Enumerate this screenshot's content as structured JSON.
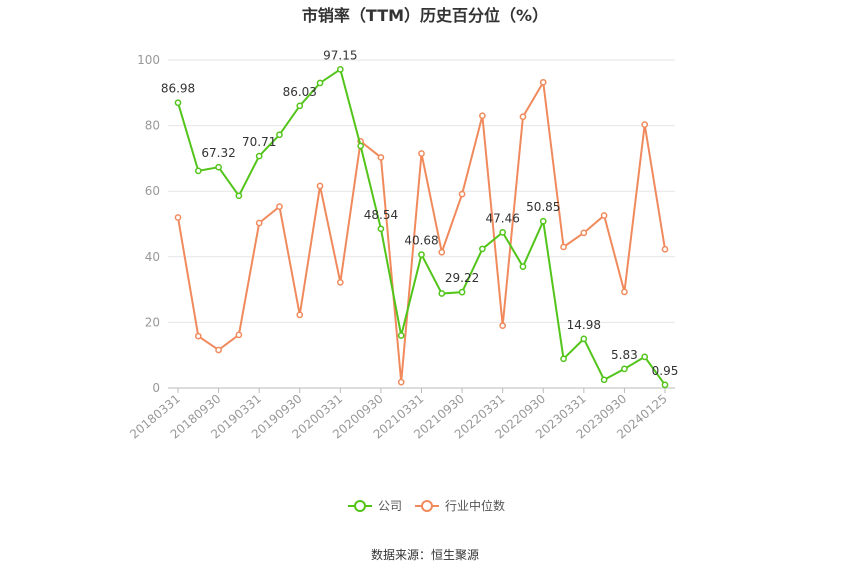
{
  "chart_data": {
    "type": "line",
    "title": "市销率（TTM）历史百分位（%）",
    "source": "数据来源：恒生聚源",
    "ylim": [
      0,
      100
    ],
    "yticks": [
      "0",
      "20",
      "40",
      "60",
      "80",
      "100"
    ],
    "x_tick_labels": [
      "20180331",
      "20180930",
      "20190331",
      "20190930",
      "20200331",
      "20200930",
      "20210331",
      "20210930",
      "20220331",
      "20220930",
      "20230331",
      "20230930",
      "20240125"
    ],
    "x_tick_indices": [
      0,
      2,
      4,
      6,
      8,
      10,
      12,
      14,
      16,
      18,
      20,
      22,
      24
    ],
    "grid": true,
    "legend_position": "bottom",
    "series": [
      {
        "name": "公司",
        "color": "#52c41a",
        "values": [
          86.98,
          66.2,
          67.32,
          58.6,
          70.71,
          77.2,
          86.03,
          93.0,
          97.15,
          73.8,
          48.54,
          16.0,
          40.68,
          28.8,
          29.22,
          42.4,
          47.46,
          37.0,
          50.85,
          8.9,
          14.98,
          2.5,
          5.83,
          9.5,
          0.95
        ],
        "labels": [
          "86.98",
          "",
          "67.32",
          "",
          "70.71",
          "",
          "86.03",
          "",
          "97.15",
          "",
          "48.54",
          "",
          "40.68",
          "",
          "29.22",
          "",
          "47.46",
          "",
          "50.85",
          "",
          "14.98",
          "",
          "5.83",
          "",
          "0.95"
        ]
      },
      {
        "name": "行业中位数",
        "color": "#f08a5d",
        "values": [
          52.0,
          15.8,
          11.6,
          16.2,
          50.3,
          55.3,
          22.3,
          61.6,
          32.2,
          75.2,
          70.3,
          1.8,
          71.5,
          41.4,
          59.1,
          83.0,
          19.0,
          82.7,
          93.2,
          43.0,
          47.3,
          52.6,
          29.3,
          80.3,
          42.3
        ]
      }
    ]
  }
}
